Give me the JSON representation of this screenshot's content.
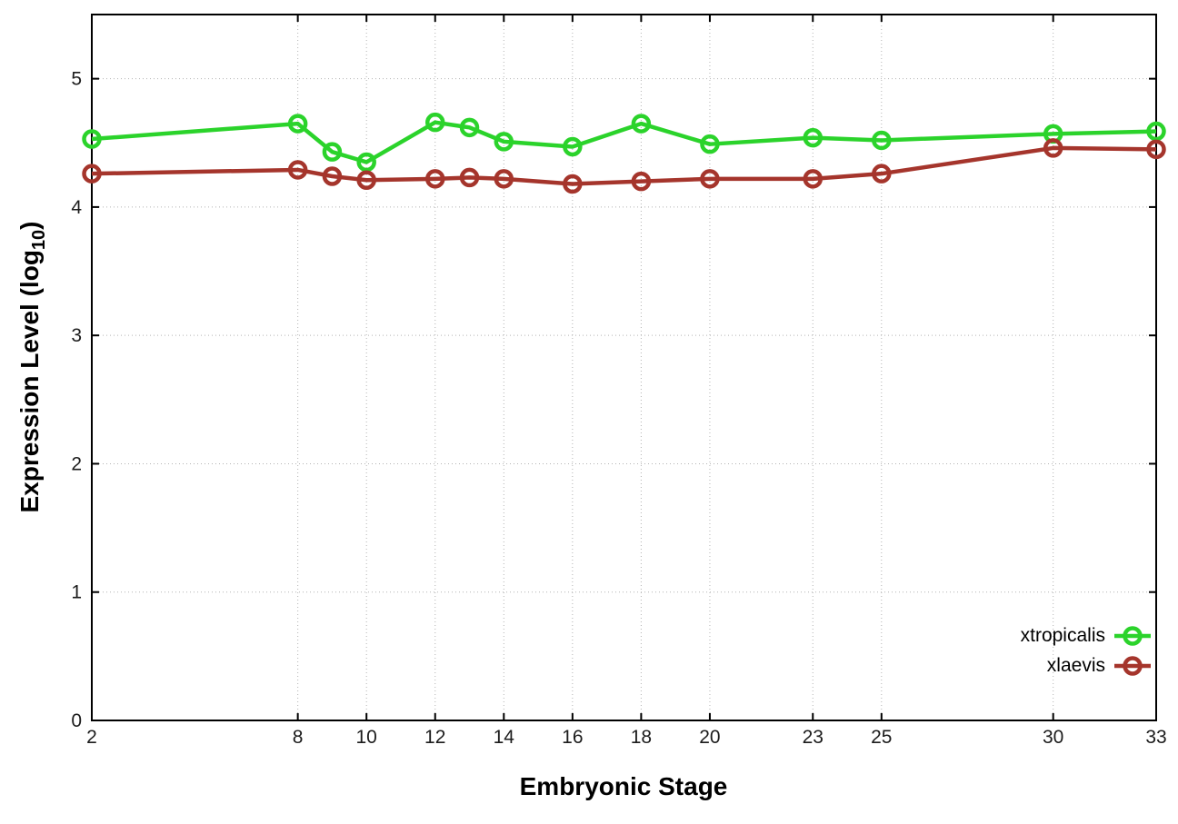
{
  "window": {
    "background_color": "#ffffff"
  },
  "chart_data": {
    "type": "line",
    "title": "",
    "xlabel": "Embryonic Stage",
    "ylabel": "Expression Level (log10)",
    "ylabel_parts": {
      "prefix": "Expression Level (log",
      "sub": "10",
      "suffix": ")"
    },
    "x": [
      2,
      8,
      9,
      10,
      12,
      13,
      14,
      16,
      18,
      20,
      23,
      25,
      30,
      33
    ],
    "series": [
      {
        "name": "xtropicalis",
        "color": "#2bd32b",
        "marker": "open-circle",
        "values": [
          4.53,
          4.65,
          4.43,
          4.35,
          4.66,
          4.62,
          4.51,
          4.47,
          4.65,
          4.49,
          4.54,
          4.52,
          4.57,
          4.59
        ]
      },
      {
        "name": "xlaevis",
        "color": "#a5352c",
        "marker": "open-circle",
        "values": [
          4.26,
          4.29,
          4.24,
          4.21,
          4.22,
          4.23,
          4.22,
          4.18,
          4.2,
          4.22,
          4.22,
          4.26,
          4.46,
          4.45
        ]
      }
    ],
    "xlim": [
      2,
      33
    ],
    "ylim": [
      0,
      5.5
    ],
    "xtick_values": [
      2,
      8,
      10,
      12,
      14,
      16,
      18,
      20,
      23,
      25,
      30,
      33
    ],
    "xtick_labels": [
      "2",
      "8",
      "10",
      "12",
      "14",
      "16",
      "18",
      "20",
      "23",
      "25",
      "30",
      "33"
    ],
    "ytick_values": [
      0,
      1,
      2,
      3,
      4,
      5
    ],
    "ytick_labels": [
      "0",
      "1",
      "2",
      "3",
      "4",
      "5"
    ],
    "grid": true,
    "grid_style": "dotted",
    "grid_color": "#b3b3b3",
    "axis_color": "#000000",
    "tick_label_color": "#1c1c1c",
    "legend_position": "bottom-right-inside"
  }
}
